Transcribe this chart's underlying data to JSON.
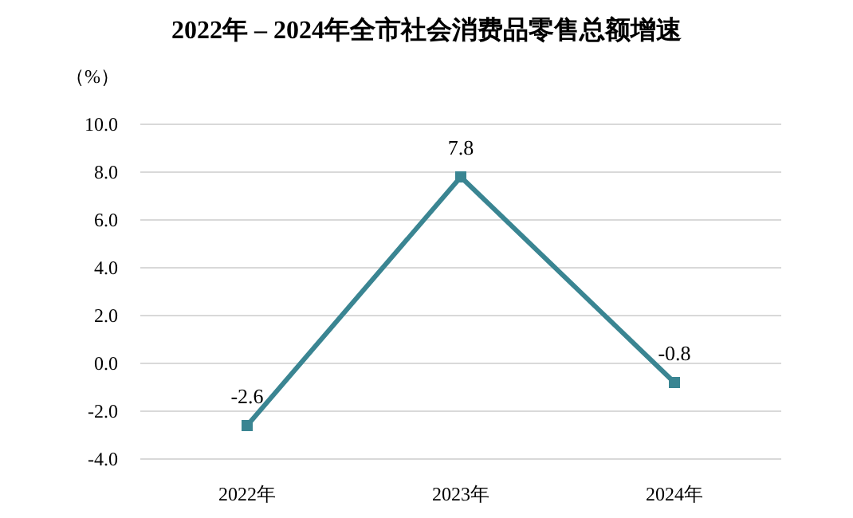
{
  "chart_data": {
    "type": "line",
    "title": "2022年 – 2024年全市社会消费品零售总额增速",
    "ylabel": "（%）",
    "categories": [
      "2022年",
      "2023年",
      "2024年"
    ],
    "series": [
      {
        "color": "#3a8592",
        "values": [
          -2.6,
          7.8,
          -0.8
        ]
      }
    ],
    "ylim": [
      -4,
      10
    ],
    "yticks": [
      {
        "value": -4,
        "label": "-4.0"
      },
      {
        "value": -2,
        "label": "-2.0"
      },
      {
        "value": 0,
        "label": "0.0"
      },
      {
        "value": 2,
        "label": "2.0"
      },
      {
        "value": 4,
        "label": "4.0"
      },
      {
        "value": 6,
        "label": "6.0"
      },
      {
        "value": 8,
        "label": "8.0"
      },
      {
        "value": 10,
        "label": "10.0"
      }
    ],
    "grid": "y",
    "marker": "square",
    "line_style": "solid",
    "data_labels": true
  }
}
